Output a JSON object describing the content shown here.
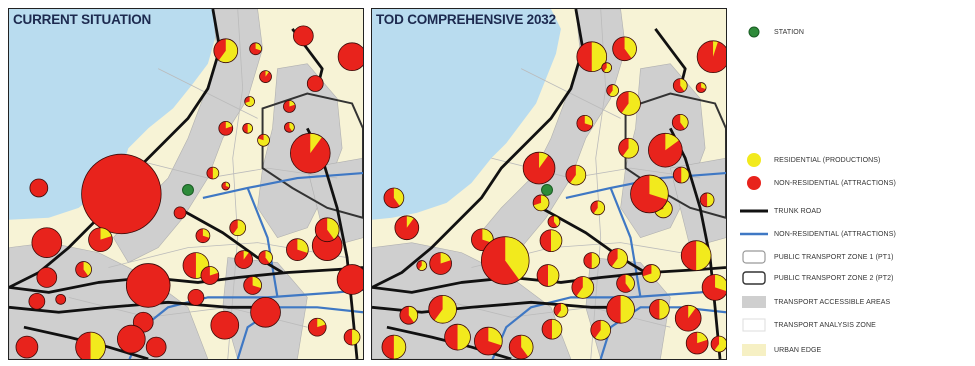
{
  "panels": {
    "left": {
      "title": "CURRENT SITUATION"
    },
    "right": {
      "title": "TOD COMPREHENSIVE 2032"
    }
  },
  "legend": {
    "items": [
      {
        "key": "station",
        "label": "STATION",
        "color": "#2e8b3a"
      },
      {
        "key": "residential",
        "label": "RESIDENTIAL (PRODUCTIONS)",
        "color": "#f2ea1d"
      },
      {
        "key": "non_residential",
        "label": "NON-RESIDENTIAL (ATTRACTIONS)",
        "color": "#e8231c"
      },
      {
        "key": "trunk_road",
        "label": "TRUNK ROAD",
        "color": "#111111"
      },
      {
        "key": "non_residential_line",
        "label": "NON-RESIDENTIAL (ATTRACTIONS)",
        "color": "#3f78c4"
      },
      {
        "key": "ptz1",
        "label": "PUBLIC TRANSPORT ZONE 1 (PT1)",
        "color": "#ffffff"
      },
      {
        "key": "ptz2",
        "label": "PUBLIC TRANSPORT ZONE 2 (PT2)",
        "color": "#ffffff"
      },
      {
        "key": "accessible",
        "label": "TRANSPORT ACCESSIBLE AREAS",
        "color": "#cfcfcf"
      },
      {
        "key": "analysis_zone",
        "label": "TRANSPORT ANALYSIS ZONE",
        "color": "#ffffff"
      },
      {
        "key": "urban_edge",
        "label": "URBAN EDGE",
        "color": "#f6f0c4"
      }
    ]
  },
  "colors": {
    "water": "#b9dcef",
    "land": "#f7f3d6",
    "accessible": "#cfcfcf",
    "trunk_road": "#111111",
    "blue_line": "#3f78c4",
    "residential": "#f2ea1d",
    "non_residential": "#e8231c",
    "station": "#2e8b3a"
  }
}
